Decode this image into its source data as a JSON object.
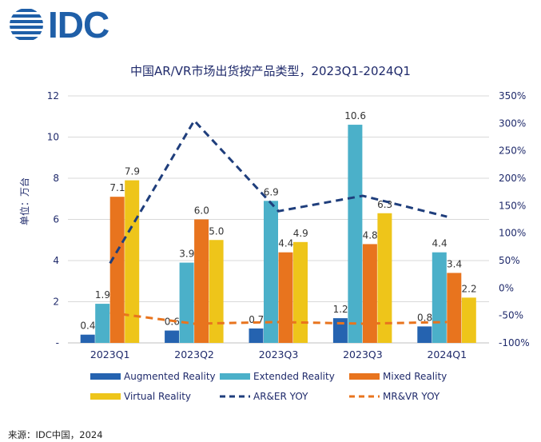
{
  "header": {
    "brand": "IDC"
  },
  "source": "来源：IDC中国，2024",
  "chart_data": {
    "type": "bar",
    "title": "中国AR/VR市场出货按产品类型，2023Q1-2024Q1",
    "ylabel": "单位：万台",
    "categories": [
      "2023Q1",
      "2023Q2",
      "2023Q3",
      "2023Q3",
      "2024Q1"
    ],
    "y_left": {
      "ticks": [
        "-",
        "2",
        "4",
        "6",
        "8",
        "10",
        "12"
      ],
      "lim": [
        0,
        12
      ]
    },
    "y_right": {
      "ticks": [
        "-100%",
        "-50%",
        "0%",
        "50%",
        "100%",
        "150%",
        "200%",
        "250%",
        "300%",
        "350%"
      ],
      "lim": [
        -100,
        350
      ]
    },
    "series": [
      {
        "name": "Augmented Reality",
        "color": "#2563b0",
        "values": [
          0.4,
          0.6,
          0.7,
          1.2,
          0.8
        ],
        "labels": [
          "0.4",
          "0.6",
          "0.7",
          "1.2",
          "0.8"
        ]
      },
      {
        "name": "Extended Reality",
        "color": "#4bb0c9",
        "values": [
          1.9,
          3.9,
          6.9,
          10.6,
          4.4
        ],
        "labels": [
          "1.9",
          "3.9",
          "6.9",
          "10.6",
          "4.4"
        ]
      },
      {
        "name": "Mixed Reality",
        "color": "#e8741e",
        "values": [
          7.1,
          6.0,
          4.4,
          4.8,
          3.4
        ],
        "labels": [
          "7.1",
          "6.0",
          "4.4",
          "4.8",
          "3.4"
        ]
      },
      {
        "name": "Virtual Reality",
        "color": "#eec51a",
        "values": [
          7.9,
          5.0,
          4.9,
          6.3,
          2.2
        ],
        "labels": [
          "7.9",
          "5.0",
          "4.9",
          "6.3",
          "2.2"
        ]
      }
    ],
    "lines": [
      {
        "name": "AR&ER YOY",
        "color": "#1f3e7c",
        "axis": "right",
        "values": [
          45,
          305,
          140,
          168,
          130
        ]
      },
      {
        "name": "MR&VR YOY",
        "color": "#e8741e",
        "axis": "right",
        "values": [
          -45,
          -65,
          -62,
          -65,
          -62
        ]
      }
    ],
    "legend": [
      "Augmented Reality",
      "Extended Reality",
      "Mixed Reality",
      "Virtual Reality",
      "AR&ER YOY",
      "MR&VR YOY"
    ],
    "grid": true
  }
}
